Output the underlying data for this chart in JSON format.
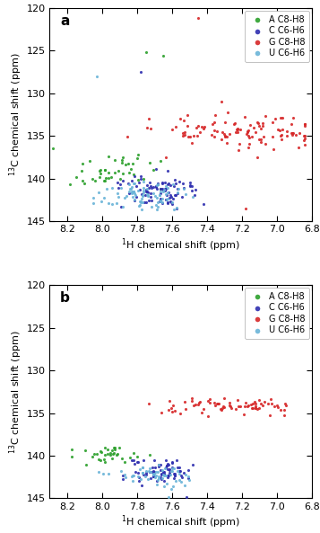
{
  "xlim": [
    8.3,
    6.8
  ],
  "ylim": [
    145,
    120
  ],
  "xticks": [
    8.2,
    8.0,
    7.8,
    7.6,
    7.4,
    7.2,
    7.0,
    6.8
  ],
  "yticks": [
    120,
    125,
    130,
    135,
    140,
    145
  ],
  "xlabel": "$^{1}$H chemical shift (ppm)",
  "ylabel": "$^{13}$C chemical shift (ppm)",
  "colors": {
    "A": "#2ca02c",
    "C": "#2e2eb0",
    "G": "#d62728",
    "U": "#6ab4d8"
  },
  "legend_labels": [
    "A C8-H8",
    "C C6-H6",
    "G C8-H8",
    "U C6-H6"
  ],
  "panel_labels": [
    "a",
    "b"
  ]
}
